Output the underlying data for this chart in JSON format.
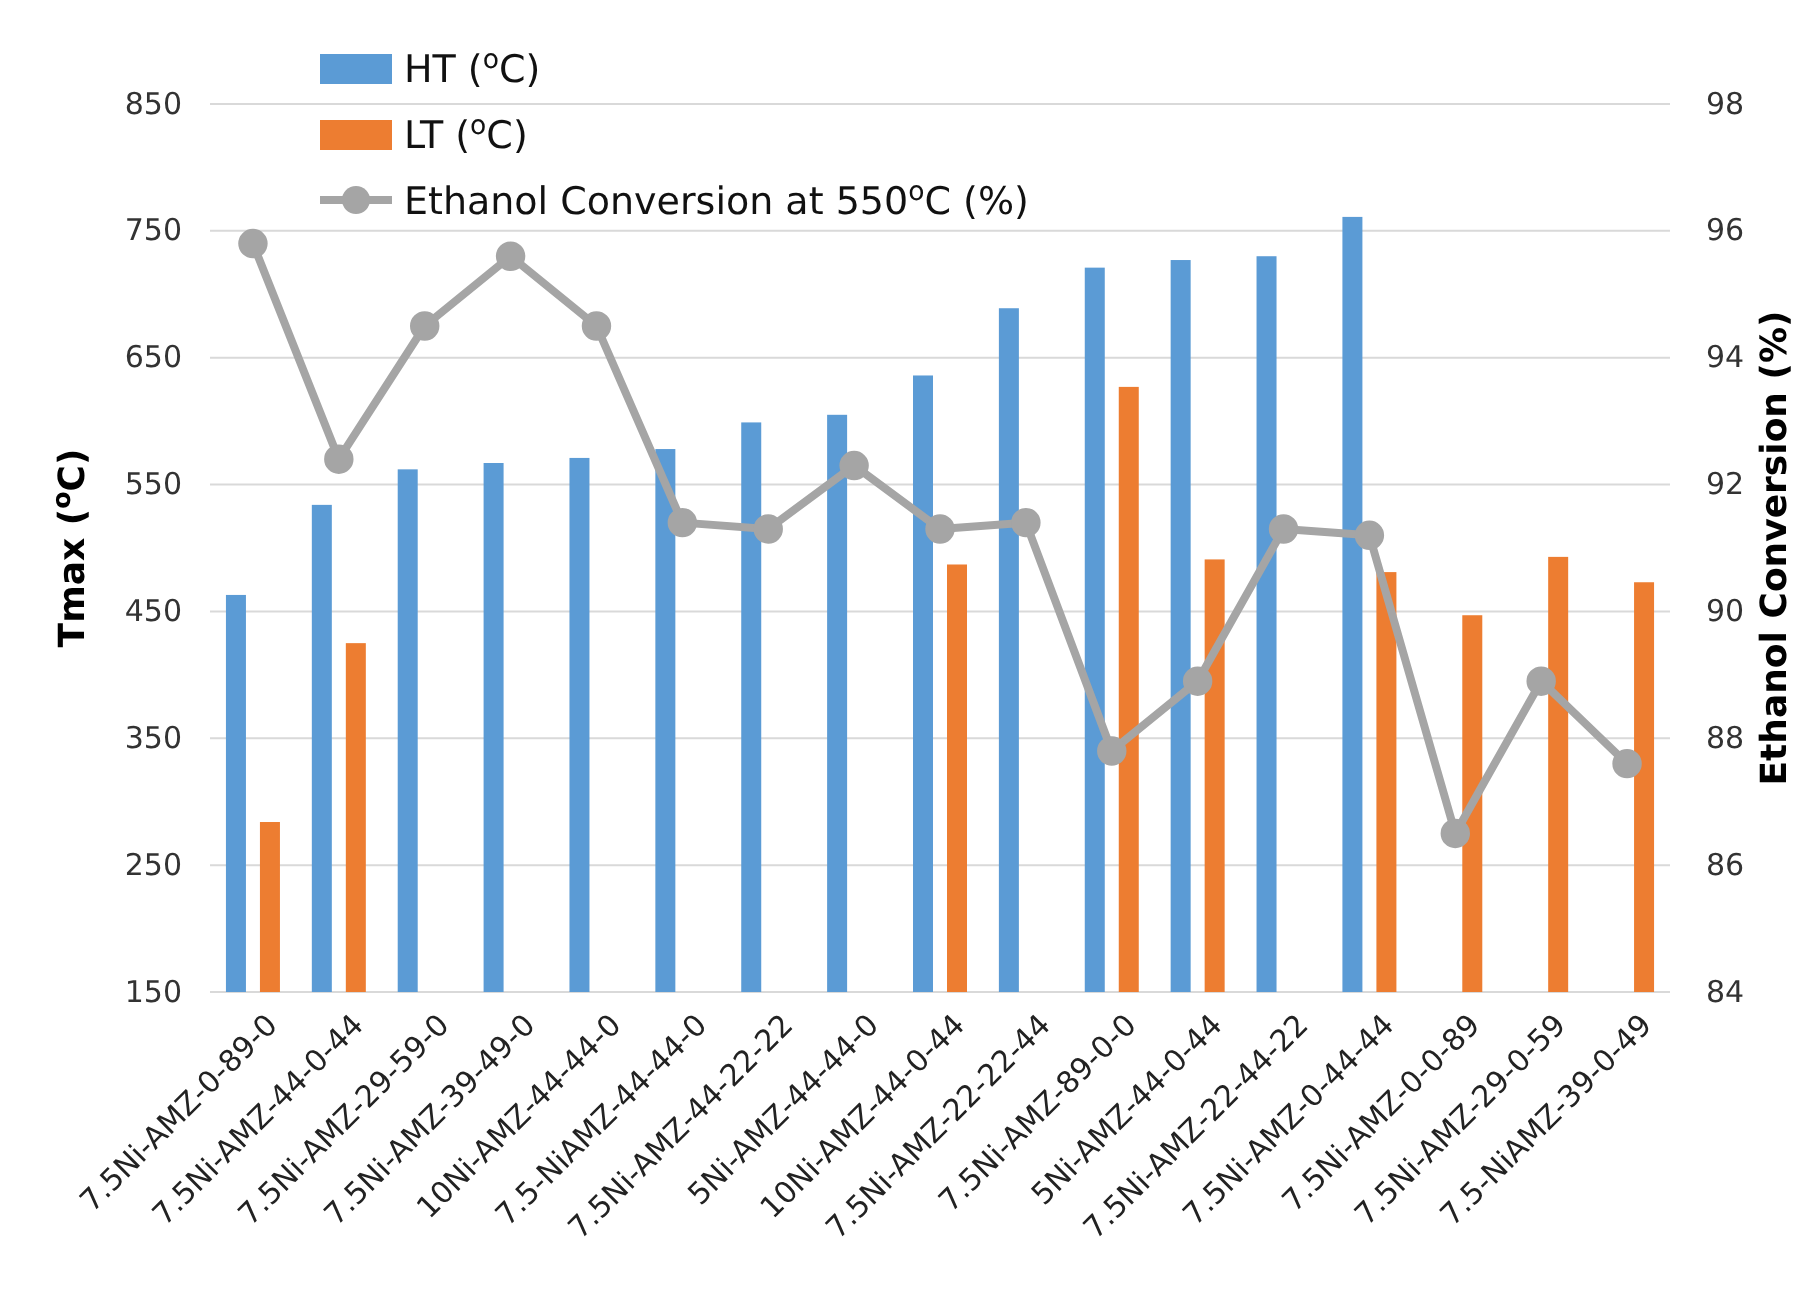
{
  "chart_data": {
    "type": "bar",
    "ylabel": "Tmax ($^{o}$C)",
    "y2label": "Ethanol Conversion (%)",
    "categories": [
      "7.5Ni-AMZ-0-89-0",
      "7.5Ni-AMZ-44-0-44",
      "7.5Ni-AMZ-29-59-0",
      "7.5Ni-AMZ-39-49-0",
      "10Ni-AMZ-44-44-0",
      "7.5-NiAMZ-44-44-0",
      "7.5Ni-AMZ-44-22-22",
      "5Ni-AMZ-44-44-0",
      "10Ni-AMZ-44-0-44",
      "7.5Ni-AMZ-22-22-44",
      "7.5Ni-AMZ-89-0-0",
      "5Ni-AMZ-44-0-44",
      "7.5Ni-AMZ-22-44-22",
      "7.5Ni-AMZ-0-44-44",
      "7.5Ni-AMZ-0-0-89",
      "7.5Ni-AMZ-29-0-59",
      "7.5-NiAMZ-39-0-49"
    ],
    "series": [
      {
        "name": "HT ($^{o}$C)",
        "color": "#5b9bd5",
        "values": [
          463,
          534,
          562,
          567,
          571,
          578,
          599,
          605,
          636,
          689,
          721,
          727,
          730,
          761,
          null,
          null,
          null
        ]
      },
      {
        "name": "LT ($^{o}$C)",
        "color": "#ed7d31",
        "values": [
          284,
          425,
          null,
          null,
          null,
          null,
          null,
          null,
          487,
          null,
          627,
          491,
          null,
          481,
          447,
          493,
          473
        ]
      },
      {
        "name": "Ethanol Conversion at 550$^{o}$C (%)",
        "type": "line",
        "axis": "y2",
        "color": "#a5a5a5",
        "marker": "circle",
        "values": [
          95.8,
          92.4,
          94.5,
          95.6,
          94.5,
          91.4,
          91.3,
          92.3,
          91.3,
          91.4,
          87.8,
          88.9,
          91.3,
          91.2,
          86.5,
          88.9,
          87.6
        ]
      }
    ],
    "ylim": [
      150,
      850
    ],
    "yticks": [
      150,
      250,
      350,
      450,
      550,
      650,
      750,
      850
    ],
    "y2lim": [
      84,
      98
    ],
    "y2ticks": [
      84,
      86,
      88,
      90,
      92,
      94,
      96,
      98
    ],
    "grid": "y",
    "legend": "top left"
  }
}
